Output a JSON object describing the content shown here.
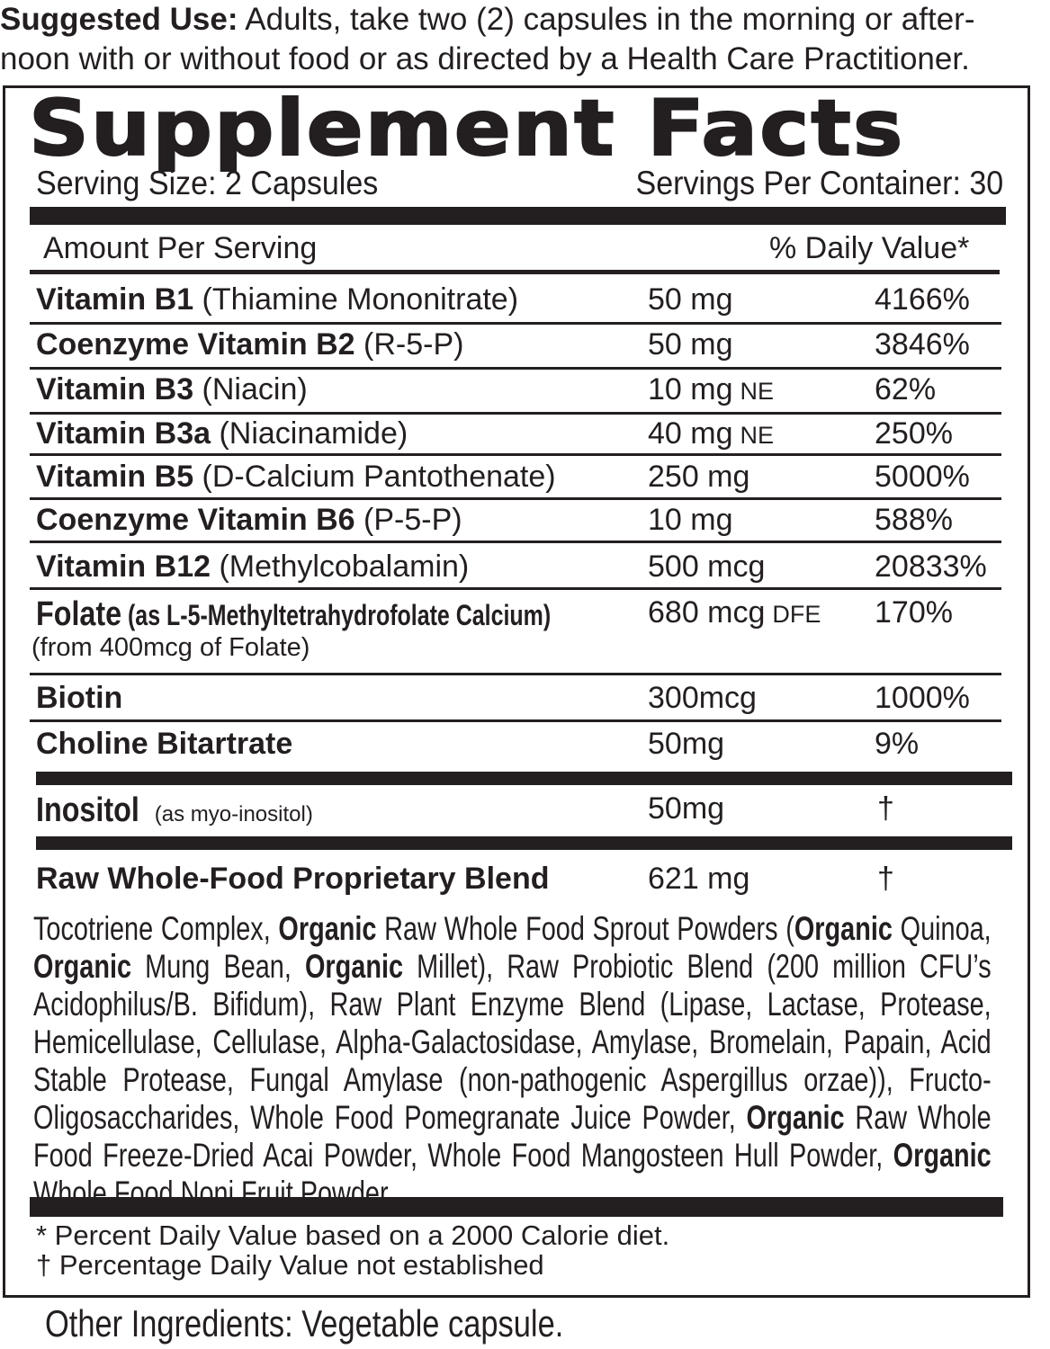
{
  "suggested_use": {
    "label": "Suggested Use:",
    "text": " Adults, take two (2) capsules in the morning or after-noon with or without food or as directed by a Health Care Practitioner."
  },
  "panel": {
    "title": "Supplement Facts",
    "serving_size": "Serving Size: 2 Capsules",
    "servings_per_container": "Servings Per Container: 30",
    "amount_per_serving": "Amount Per Serving",
    "daily_value_header": "% Daily Value*"
  },
  "rows": [
    {
      "name": "Vitamin B1",
      "detail": " (Thiamine Mononitrate)",
      "amount": "50 mg",
      "unit": "",
      "dv": "4166%"
    },
    {
      "name": "Coenzyme Vitamin B2",
      "detail": " (R-5-P)",
      "amount": "50 mg",
      "unit": "",
      "dv": "3846%"
    },
    {
      "name": "Vitamin B3",
      "detail": " (Niacin)",
      "amount": "10 mg",
      "unit": "NE",
      "dv": "62%"
    },
    {
      "name": "Vitamin B3a",
      "detail": " (Niacinamide)",
      "amount": "40 mg",
      "unit": "NE",
      "dv": "250%"
    },
    {
      "name": "Vitamin B5",
      "detail": " (D-Calcium Pantothenate)",
      "amount": "250 mg",
      "unit": "",
      "dv": "5000%"
    },
    {
      "name": "Coenzyme Vitamin B6",
      "detail": " (P-5-P)",
      "amount": "10 mg",
      "unit": "",
      "dv": "588%"
    },
    {
      "name": "Vitamin B12",
      "detail": " (Methylcobalamin)",
      "amount": "500 mcg",
      "unit": "",
      "dv": "20833%"
    },
    {
      "name": "Folate",
      "detail": " (as L-5-Methyltetrahydrofolate Calcium)",
      "subline": "(from 400mcg of Folate)",
      "amount": "680 mcg",
      "unit": "DFE",
      "dv": "170%"
    },
    {
      "name": "Biotin",
      "detail": "",
      "amount": "300mcg",
      "unit": "",
      "dv": "1000%"
    },
    {
      "name": "Choline Bitartrate",
      "detail": "",
      "amount": "50mg",
      "unit": "",
      "dv": "9%"
    },
    {
      "name": "Inositol",
      "detail": " (as myo-inositol)",
      "amount": "50mg",
      "unit": "",
      "dv": "†"
    },
    {
      "name": "Raw Whole-Food Proprietary Blend",
      "detail": "",
      "amount": "621 mg",
      "unit": "",
      "dv": "†"
    }
  ],
  "blend_ingredients": [
    {
      "text": "Tocotriene Complex, ",
      "bold": false
    },
    {
      "text": "Organic",
      "bold": true
    },
    {
      "text": " Raw Whole Food Sprout Powders (",
      "bold": false
    },
    {
      "text": "Organic",
      "bold": true
    },
    {
      "text": " Quinoa, ",
      "bold": false
    },
    {
      "text": "Organic",
      "bold": true
    },
    {
      "text": " Mung Bean, ",
      "bold": false
    },
    {
      "text": "Organic",
      "bold": true
    },
    {
      "text": " Millet), Raw Probiotic Blend (200 million CFU’s Acidophilus/B. Bifidum), Raw Plant Enzyme Blend (Lipase, Lactase, Protease, Hemicellulase, Cellulase, Alpha-Galactosidase, Amylase, Bromelain, Papain, Acid Stable Protease, Fungal Amylase (non-pathogenic Aspergillus orzae)), Fructo-Oligosaccharides, Whole Food Pomegranate Juice Powder, ",
      "bold": false
    },
    {
      "text": "Organic",
      "bold": true
    },
    {
      "text": " Raw Whole Food Freeze-Dried Acai Powder, Whole Food Mangosteen Hull Powder, ",
      "bold": false
    },
    {
      "text": "Organic",
      "bold": true
    },
    {
      "text": " Whole Food Noni Fruit Powder.",
      "bold": false
    }
  ],
  "footnotes": [
    "* Percent Daily Value  based on a 2000 Calorie diet.",
    "† Percentage Daily Value not established"
  ],
  "other_ingredients": "Other Ingredients: Vegetable capsule."
}
